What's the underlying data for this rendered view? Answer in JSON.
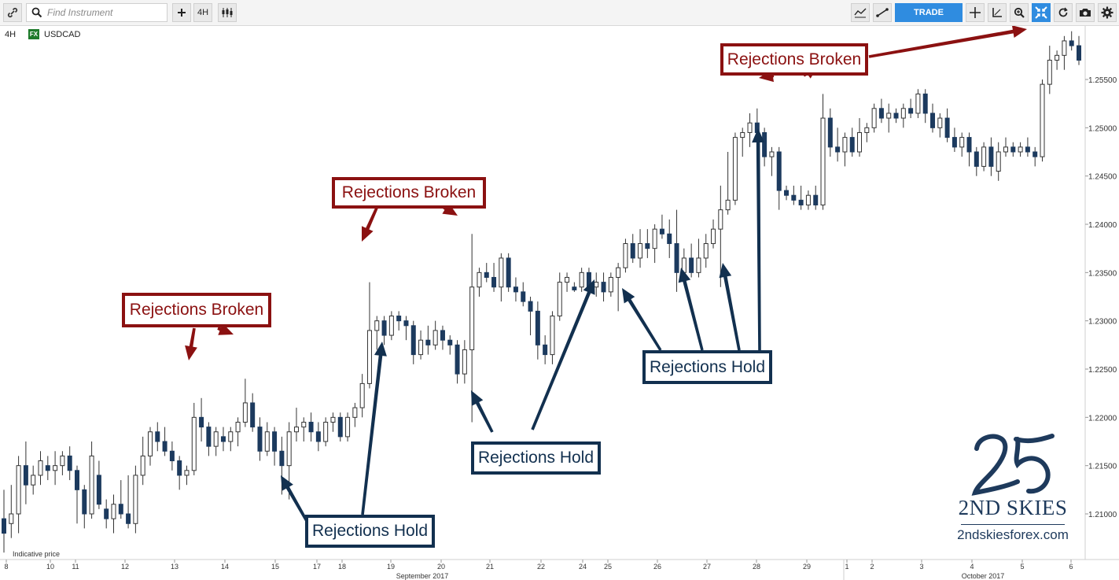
{
  "toolbar": {
    "search_placeholder": "Find Instrument",
    "timeframe_label": "4H",
    "trade_label": "TRADE",
    "icons": [
      "link-icon",
      "search-icon",
      "plus-icon",
      "candles-icon",
      "studies-icon",
      "draw-line-icon",
      "crosshair-icon",
      "measure-icon",
      "zoom-icon",
      "fit-icon",
      "refresh-icon",
      "camera-icon",
      "gear-icon"
    ]
  },
  "symbol": {
    "timeframe": "4H",
    "badge": "FX",
    "name": "USDCAD"
  },
  "chart_data": {
    "type": "candlestick",
    "price_axis": [
      "1.25500",
      "1.25000",
      "1.24500",
      "1.24000",
      "1.23500",
      "1.23000",
      "1.22500",
      "1.22000",
      "1.21500",
      "1.21000"
    ],
    "date_ticks": [
      "8",
      "10",
      "11",
      "12",
      "13",
      "14",
      "15",
      "17",
      "18",
      "19",
      "20",
      "21",
      "22",
      "24",
      "25",
      "26",
      "27",
      "28",
      "29",
      "1",
      "2",
      "3",
      "4",
      "5",
      "6"
    ],
    "month_labels": [
      "September 2017",
      "October 2017"
    ],
    "note": "Indicative price",
    "colors": {
      "up": "#ffffff",
      "down": "#1c3a5e",
      "outline": "#333333"
    },
    "candles": [
      [
        1.2095,
        1.2125,
        1.206,
        1.208
      ],
      [
        1.209,
        1.213,
        1.2075,
        1.21
      ],
      [
        1.21,
        1.216,
        1.208,
        1.215
      ],
      [
        1.215,
        1.2175,
        1.211,
        1.213
      ],
      [
        1.213,
        1.215,
        1.212,
        1.214
      ],
      [
        1.214,
        1.2165,
        1.213,
        1.2155
      ],
      [
        1.215,
        1.216,
        1.2135,
        1.2145
      ],
      [
        1.2145,
        1.2165,
        1.213,
        1.215
      ],
      [
        1.215,
        1.2165,
        1.214,
        1.216
      ],
      [
        1.216,
        1.217,
        1.2135,
        1.2145
      ],
      [
        1.2145,
        1.215,
        1.209,
        1.2125
      ],
      [
        1.2125,
        1.213,
        1.2085,
        1.21
      ],
      [
        1.21,
        1.2175,
        1.2095,
        1.216
      ],
      [
        1.214,
        1.2155,
        1.2105,
        1.211
      ],
      [
        1.2105,
        1.2115,
        1.2085,
        1.2095
      ],
      [
        1.2095,
        1.212,
        1.208,
        1.211
      ],
      [
        1.211,
        1.2135,
        1.2095,
        1.21
      ],
      [
        1.21,
        1.214,
        1.2085,
        1.209
      ],
      [
        1.209,
        1.215,
        1.208,
        1.214
      ],
      [
        1.214,
        1.218,
        1.213,
        1.216
      ],
      [
        1.216,
        1.219,
        1.215,
        1.2185
      ],
      [
        1.2185,
        1.2195,
        1.2165,
        1.2175
      ],
      [
        1.2175,
        1.219,
        1.216,
        1.2165
      ],
      [
        1.2165,
        1.2175,
        1.2145,
        1.2155
      ],
      [
        1.2155,
        1.216,
        1.2125,
        1.214
      ],
      [
        1.214,
        1.215,
        1.213,
        1.2145
      ],
      [
        1.2145,
        1.2215,
        1.214,
        1.22
      ],
      [
        1.22,
        1.222,
        1.2175,
        1.219
      ],
      [
        1.219,
        1.2195,
        1.216,
        1.217
      ],
      [
        1.217,
        1.219,
        1.216,
        1.2185
      ],
      [
        1.218,
        1.219,
        1.2165,
        1.2175
      ],
      [
        1.2175,
        1.219,
        1.2165,
        1.2185
      ],
      [
        1.2185,
        1.22,
        1.217,
        1.2195
      ],
      [
        1.2195,
        1.224,
        1.219,
        1.2215
      ],
      [
        1.2215,
        1.2225,
        1.2185,
        1.219
      ],
      [
        1.219,
        1.22,
        1.2155,
        1.2165
      ],
      [
        1.2165,
        1.2195,
        1.216,
        1.2185
      ],
      [
        1.2185,
        1.219,
        1.215,
        1.2165
      ],
      [
        1.2165,
        1.218,
        1.212,
        1.215
      ],
      [
        1.215,
        1.2195,
        1.2115,
        1.2185
      ],
      [
        1.2185,
        1.221,
        1.2175,
        1.219
      ],
      [
        1.219,
        1.22,
        1.2175,
        1.2195
      ],
      [
        1.2195,
        1.2205,
        1.2175,
        1.2185
      ],
      [
        1.2185,
        1.2195,
        1.2165,
        1.2175
      ],
      [
        1.2175,
        1.22,
        1.217,
        1.2195
      ],
      [
        1.2195,
        1.2205,
        1.2185,
        1.22
      ],
      [
        1.22,
        1.2205,
        1.2175,
        1.218
      ],
      [
        1.218,
        1.2205,
        1.2175,
        1.22
      ],
      [
        1.22,
        1.2215,
        1.219,
        1.221
      ],
      [
        1.221,
        1.2245,
        1.22,
        1.2235
      ],
      [
        1.2235,
        1.234,
        1.223,
        1.229
      ],
      [
        1.229,
        1.2305,
        1.227,
        1.23
      ],
      [
        1.23,
        1.2305,
        1.2275,
        1.2285
      ],
      [
        1.2285,
        1.231,
        1.228,
        1.2305
      ],
      [
        1.2305,
        1.231,
        1.229,
        1.23
      ],
      [
        1.23,
        1.2305,
        1.228,
        1.2295
      ],
      [
        1.2295,
        1.23,
        1.2255,
        1.2265
      ],
      [
        1.2265,
        1.229,
        1.226,
        1.228
      ],
      [
        1.228,
        1.2295,
        1.2265,
        1.2275
      ],
      [
        1.2275,
        1.23,
        1.227,
        1.229
      ],
      [
        1.229,
        1.2295,
        1.227,
        1.228
      ],
      [
        1.228,
        1.2285,
        1.2265,
        1.2275
      ],
      [
        1.2275,
        1.228,
        1.2235,
        1.2245
      ],
      [
        1.2245,
        1.228,
        1.2235,
        1.227
      ],
      [
        1.227,
        1.239,
        1.2195,
        1.2335
      ],
      [
        1.2335,
        1.2355,
        1.2325,
        1.235
      ],
      [
        1.235,
        1.236,
        1.234,
        1.2345
      ],
      [
        1.2345,
        1.236,
        1.233,
        1.2335
      ],
      [
        1.2335,
        1.237,
        1.232,
        1.2365
      ],
      [
        1.2365,
        1.237,
        1.233,
        1.2335
      ],
      [
        1.2335,
        1.2345,
        1.232,
        1.233
      ],
      [
        1.233,
        1.234,
        1.2315,
        1.232
      ],
      [
        1.232,
        1.2325,
        1.2285,
        1.231
      ],
      [
        1.231,
        1.232,
        1.226,
        1.2275
      ],
      [
        1.2275,
        1.2285,
        1.2255,
        1.2265
      ],
      [
        1.2265,
        1.231,
        1.2255,
        1.2305
      ],
      [
        1.2305,
        1.235,
        1.23,
        1.234
      ],
      [
        1.234,
        1.235,
        1.233,
        1.2345
      ],
      [
        1.2335,
        1.234,
        1.233,
        1.2332
      ],
      [
        1.2335,
        1.2355,
        1.233,
        1.235
      ],
      [
        1.235,
        1.2355,
        1.233,
        1.2335
      ],
      [
        1.2335,
        1.235,
        1.2325,
        1.234
      ],
      [
        1.234,
        1.235,
        1.232,
        1.233
      ],
      [
        1.233,
        1.235,
        1.2325,
        1.2345
      ],
      [
        1.2345,
        1.236,
        1.231,
        1.2355
      ],
      [
        1.2355,
        1.2385,
        1.235,
        1.238
      ],
      [
        1.238,
        1.239,
        1.236,
        1.2365
      ],
      [
        1.2365,
        1.2395,
        1.2355,
        1.238
      ],
      [
        1.238,
        1.2395,
        1.2365,
        1.2375
      ],
      [
        1.2375,
        1.24,
        1.236,
        1.2395
      ],
      [
        1.2395,
        1.241,
        1.2385,
        1.239
      ],
      [
        1.239,
        1.2405,
        1.2365,
        1.238
      ],
      [
        1.238,
        1.2415,
        1.233,
        1.235
      ],
      [
        1.235,
        1.2375,
        1.234,
        1.2365
      ],
      [
        1.2365,
        1.238,
        1.2345,
        1.235
      ],
      [
        1.235,
        1.2385,
        1.2345,
        1.2365
      ],
      [
        1.2365,
        1.239,
        1.2355,
        1.238
      ],
      [
        1.238,
        1.2405,
        1.2375,
        1.2395
      ],
      [
        1.2395,
        1.244,
        1.2335,
        1.2415
      ],
      [
        1.2415,
        1.2475,
        1.241,
        1.2425
      ],
      [
        1.2425,
        1.2495,
        1.242,
        1.249
      ],
      [
        1.249,
        1.25,
        1.247,
        1.2495
      ],
      [
        1.2495,
        1.2515,
        1.248,
        1.2505
      ],
      [
        1.2505,
        1.252,
        1.249,
        1.2495
      ],
      [
        1.2495,
        1.25,
        1.246,
        1.247
      ],
      [
        1.247,
        1.248,
        1.245,
        1.2475
      ],
      [
        1.2475,
        1.248,
        1.2415,
        1.2435
      ],
      [
        1.2435,
        1.244,
        1.2425,
        1.243
      ],
      [
        1.243,
        1.244,
        1.242,
        1.2425
      ],
      [
        1.2425,
        1.244,
        1.2415,
        1.242
      ],
      [
        1.242,
        1.2435,
        1.2415,
        1.243
      ],
      [
        1.243,
        1.244,
        1.2415,
        1.242
      ],
      [
        1.242,
        1.2535,
        1.2415,
        1.251
      ],
      [
        1.251,
        1.252,
        1.247,
        1.248
      ],
      [
        1.248,
        1.25,
        1.2465,
        1.2475
      ],
      [
        1.2475,
        1.2495,
        1.246,
        1.249
      ],
      [
        1.249,
        1.25,
        1.247,
        1.2475
      ],
      [
        1.2475,
        1.251,
        1.247,
        1.2495
      ],
      [
        1.2495,
        1.2505,
        1.2485,
        1.25
      ],
      [
        1.25,
        1.2525,
        1.2495,
        1.252
      ],
      [
        1.252,
        1.253,
        1.2505,
        1.251
      ],
      [
        1.251,
        1.2525,
        1.2495,
        1.2515
      ],
      [
        1.2515,
        1.252,
        1.2505,
        1.251
      ],
      [
        1.251,
        1.2525,
        1.25,
        1.252
      ],
      [
        1.252,
        1.253,
        1.251,
        1.2515
      ],
      [
        1.2515,
        1.254,
        1.251,
        1.2535
      ],
      [
        1.2535,
        1.254,
        1.2505,
        1.2515
      ],
      [
        1.2515,
        1.2525,
        1.2495,
        1.25
      ],
      [
        1.25,
        1.2515,
        1.249,
        1.251
      ],
      [
        1.251,
        1.252,
        1.2485,
        1.249
      ],
      [
        1.249,
        1.25,
        1.2475,
        1.248
      ],
      [
        1.248,
        1.2495,
        1.247,
        1.249
      ],
      [
        1.249,
        1.2495,
        1.246,
        1.2475
      ],
      [
        1.2475,
        1.248,
        1.245,
        1.246
      ],
      [
        1.246,
        1.2485,
        1.2455,
        1.248
      ],
      [
        1.248,
        1.249,
        1.245,
        1.246
      ],
      [
        1.2455,
        1.2485,
        1.2445,
        1.2475
      ],
      [
        1.2475,
        1.249,
        1.247,
        1.248
      ],
      [
        1.248,
        1.2485,
        1.247,
        1.2475
      ],
      [
        1.2475,
        1.2485,
        1.247,
        1.248
      ],
      [
        1.248,
        1.249,
        1.247,
        1.2475
      ],
      [
        1.2475,
        1.248,
        1.246,
        1.247
      ],
      [
        1.247,
        1.255,
        1.2465,
        1.2545
      ],
      [
        1.2545,
        1.2585,
        1.2535,
        1.257
      ],
      [
        1.257,
        1.258,
        1.256,
        1.2575
      ],
      [
        1.2575,
        1.2595,
        1.256,
        1.259
      ],
      [
        1.259,
        1.26,
        1.258,
        1.2585
      ],
      [
        1.2585,
        1.2595,
        1.2565,
        1.257
      ]
    ]
  },
  "annotations": [
    {
      "id": "broken-1",
      "text": "Rejections Broken",
      "style": "broken"
    },
    {
      "id": "broken-2",
      "text": "Rejections Broken",
      "style": "broken"
    },
    {
      "id": "broken-3",
      "text": "Rejections Broken",
      "style": "broken"
    },
    {
      "id": "hold-1",
      "text": "Rejections Hold",
      "style": "hold"
    },
    {
      "id": "hold-2",
      "text": "Rejections Hold",
      "style": "hold"
    },
    {
      "id": "hold-3",
      "text": "Rejections Hold",
      "style": "hold"
    }
  ],
  "logo": {
    "text": "2ND SKIES",
    "url": "2ndskiesforex.com"
  }
}
